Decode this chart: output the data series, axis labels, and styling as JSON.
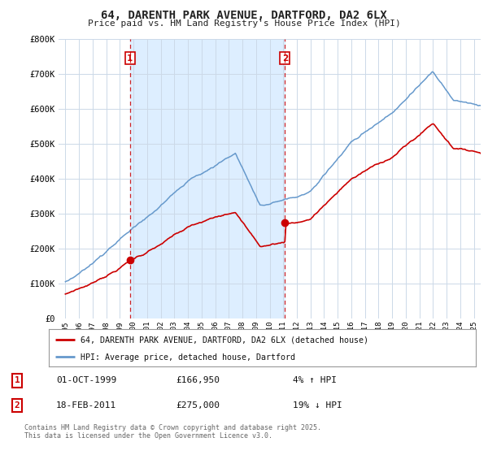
{
  "title": "64, DARENTH PARK AVENUE, DARTFORD, DA2 6LX",
  "subtitle": "Price paid vs. HM Land Registry's House Price Index (HPI)",
  "bg_color": "#ffffff",
  "plot_bg_color": "#ffffff",
  "shade_color": "#ddeeff",
  "grid_color": "#ccddee",
  "line_color_house": "#cc0000",
  "line_color_hpi": "#6699cc",
  "transaction_labels": [
    {
      "num": "1",
      "date": "01-OCT-1999",
      "price": "£166,950",
      "hpi_change": "4% ↑ HPI"
    },
    {
      "num": "2",
      "date": "18-FEB-2011",
      "price": "£275,000",
      "hpi_change": "19% ↓ HPI"
    }
  ],
  "legend_house": "64, DARENTH PARK AVENUE, DARTFORD, DA2 6LX (detached house)",
  "legend_hpi": "HPI: Average price, detached house, Dartford",
  "footer": "Contains HM Land Registry data © Crown copyright and database right 2025.\nThis data is licensed under the Open Government Licence v3.0.",
  "ylim": [
    0,
    800000
  ],
  "yticks": [
    0,
    100000,
    200000,
    300000,
    400000,
    500000,
    600000,
    700000,
    800000
  ],
  "ytick_labels": [
    "£0",
    "£100K",
    "£200K",
    "£300K",
    "£400K",
    "£500K",
    "£600K",
    "£700K",
    "£800K"
  ],
  "xlim_start": 1994.5,
  "xlim_end": 2025.5,
  "xtick_years": [
    1995,
    1996,
    1997,
    1998,
    1999,
    2000,
    2001,
    2002,
    2003,
    2004,
    2005,
    2006,
    2007,
    2008,
    2009,
    2010,
    2011,
    2012,
    2013,
    2014,
    2015,
    2016,
    2017,
    2018,
    2019,
    2020,
    2021,
    2022,
    2023,
    2024,
    2025
  ],
  "t1": 1999.75,
  "t2": 2011.12,
  "p1": 166950,
  "p2": 275000
}
